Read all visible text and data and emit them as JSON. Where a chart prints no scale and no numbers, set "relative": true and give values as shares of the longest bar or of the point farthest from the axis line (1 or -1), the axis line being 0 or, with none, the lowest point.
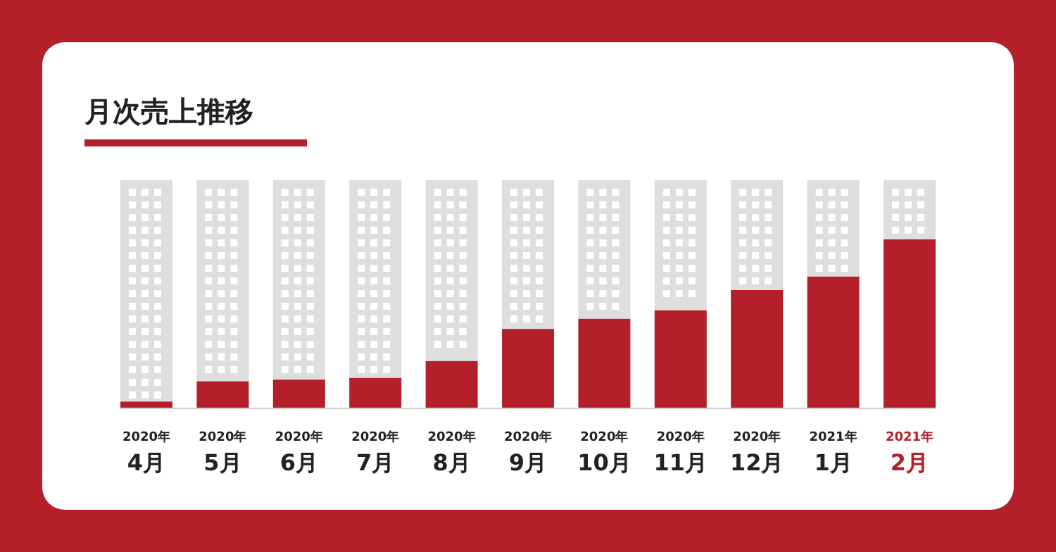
{
  "chart_data": {
    "type": "bar",
    "title": "月次売上推移",
    "relative": true,
    "color": "#b3202a",
    "categories": [
      "2020年\n4月",
      "2020年\n5月",
      "2020年\n6月",
      "2020年\n7月",
      "2020年\n8月",
      "2020年\n9月",
      "2020年\n10月",
      "2020年\n11月",
      "2020年\n12月",
      "2021年\n1月",
      "2021年\n2月"
    ],
    "values": [
      0.04,
      0.16,
      0.17,
      0.18,
      0.28,
      0.47,
      0.53,
      0.58,
      0.7,
      0.78,
      1
    ]
  }
}
